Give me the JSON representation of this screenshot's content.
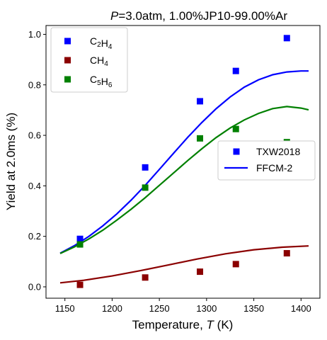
{
  "chart_data": {
    "type": "scatter",
    "title": {
      "prefix_italic": "P",
      "rest": "=3.0atm, 1.00%JP10-99.00%Ar"
    },
    "xlabel": {
      "text": "Temperature, ",
      "italic": "T",
      "unit": " (K)"
    },
    "ylabel": "Yield at 2.0ms (%)",
    "xlim": [
      1130,
      1420
    ],
    "ylim": [
      -0.045,
      1.035
    ],
    "xticks": [
      1150,
      1200,
      1250,
      1300,
      1350,
      1400
    ],
    "yticks": [
      0.0,
      0.2,
      0.4,
      0.6,
      0.8,
      1.0
    ],
    "xtick_labels": [
      "1150",
      "1200",
      "1250",
      "1300",
      "1350",
      "1400"
    ],
    "ytick_labels": [
      "0.0",
      "0.2",
      "0.4",
      "0.6",
      "0.8",
      "1.0"
    ],
    "grid": false,
    "series": [
      {
        "name": "C2H4",
        "label_base": "C",
        "label_sub1": "2",
        "label_mid": "H",
        "label_sub2": "4",
        "color": "#0000ff",
        "measured": {
          "x": [
            1166,
            1235,
            1293,
            1331,
            1385
          ],
          "y": [
            0.19,
            0.473,
            0.735,
            0.855,
            0.985
          ]
        },
        "model": {
          "x": [
            1145,
            1160,
            1175,
            1190,
            1205,
            1220,
            1235,
            1250,
            1265,
            1280,
            1295,
            1310,
            1325,
            1340,
            1355,
            1370,
            1385,
            1400,
            1408
          ],
          "y": [
            0.133,
            0.163,
            0.199,
            0.241,
            0.289,
            0.343,
            0.402,
            0.465,
            0.529,
            0.592,
            0.651,
            0.705,
            0.752,
            0.791,
            0.82,
            0.84,
            0.851,
            0.855,
            0.855
          ]
        }
      },
      {
        "name": "CH4",
        "label_base": "CH",
        "label_sub1": "4",
        "label_mid": "",
        "label_sub2": "",
        "color": "#8b0000",
        "measured": {
          "x": [
            1166,
            1235,
            1293,
            1331,
            1385
          ],
          "y": [
            0.008,
            0.037,
            0.06,
            0.09,
            0.133
          ]
        },
        "model": {
          "x": [
            1145,
            1170,
            1200,
            1230,
            1260,
            1290,
            1320,
            1350,
            1380,
            1408
          ],
          "y": [
            0.016,
            0.026,
            0.043,
            0.064,
            0.087,
            0.11,
            0.131,
            0.147,
            0.157,
            0.162
          ]
        }
      },
      {
        "name": "C5H6",
        "label_base": "C",
        "label_sub1": "5",
        "label_mid": "H",
        "label_sub2": "6",
        "color": "#008000",
        "measured": {
          "x": [
            1166,
            1235,
            1293,
            1331,
            1385
          ],
          "y": [
            0.168,
            0.393,
            0.588,
            0.625,
            0.573
          ]
        },
        "model": {
          "x": [
            1145,
            1160,
            1175,
            1190,
            1205,
            1220,
            1235,
            1250,
            1265,
            1280,
            1295,
            1310,
            1325,
            1340,
            1355,
            1370,
            1385,
            1400,
            1408
          ],
          "y": [
            0.132,
            0.158,
            0.189,
            0.224,
            0.264,
            0.307,
            0.353,
            0.402,
            0.451,
            0.5,
            0.547,
            0.591,
            0.629,
            0.661,
            0.687,
            0.706,
            0.714,
            0.708,
            0.701
          ]
        }
      }
    ],
    "legend_species": {
      "position": "upper-left"
    },
    "legend_style": {
      "position": "center-right",
      "items": [
        {
          "label": "TXW2018",
          "kind": "marker",
          "color": "#0000ff"
        },
        {
          "label": "FFCM-2",
          "kind": "line",
          "color": "#0000ff"
        }
      ]
    }
  }
}
